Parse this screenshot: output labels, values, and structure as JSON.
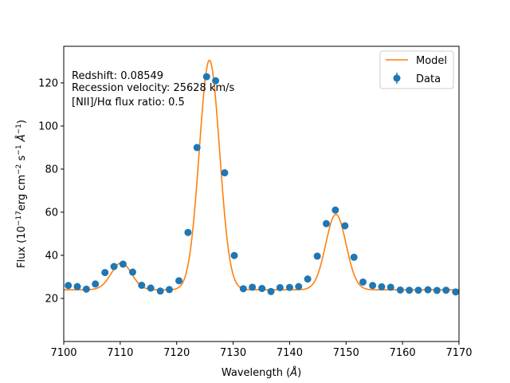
{
  "chart_data": {
    "type": "scatter",
    "xlabel_main": "Wavelength (",
    "xlabel_unit": "Å",
    "xlabel_end": ")",
    "ylabel_main": "Flux (10",
    "ylabel_exp1": "−17",
    "ylabel_mid1": "erg cm",
    "ylabel_exp2": "−2",
    "ylabel_mid2": " s",
    "ylabel_exp3": "−1",
    "ylabel_mid3": " Å",
    "ylabel_exp4": "−1",
    "ylabel_end": ")",
    "xlim": [
      7100,
      7170
    ],
    "ylim": [
      0,
      137
    ],
    "xticks": [
      7100,
      7110,
      7120,
      7130,
      7140,
      7150,
      7160,
      7170
    ],
    "yticks": [
      20,
      40,
      60,
      80,
      100,
      120
    ],
    "grid": false,
    "legend_position": "top-right",
    "annotations": [
      "Redshift: 0.08549",
      "Recession velocity: 25628 km/s",
      "[NII]/Hα flux ratio: 0.5"
    ],
    "series": [
      {
        "name": "Model",
        "kind": "line",
        "color": "#ff7f0e",
        "continuum": 24,
        "components": [
          {
            "center": 7110.2,
            "amplitude": 12.5,
            "sigma": 1.8
          },
          {
            "center": 7125.8,
            "amplitude": 106.5,
            "sigma": 1.8
          },
          {
            "center": 7148.2,
            "amplitude": 35.0,
            "sigma": 1.8
          }
        ]
      },
      {
        "name": "Data",
        "kind": "scatter",
        "color": "#1f77b4",
        "x": [
          7100.8,
          7102.4,
          7104.0,
          7105.6,
          7107.3,
          7108.9,
          7110.5,
          7112.2,
          7113.8,
          7115.4,
          7117.1,
          7118.7,
          7120.4,
          7122.0,
          7123.6,
          7125.3,
          7126.9,
          7128.5,
          7130.2,
          7131.8,
          7133.4,
          7135.1,
          7136.7,
          7138.3,
          7140.0,
          7141.6,
          7143.2,
          7144.9,
          7146.5,
          7148.1,
          7149.8,
          7151.4,
          7153.0,
          7154.7,
          7156.3,
          7157.9,
          7159.6,
          7161.2,
          7162.8,
          7164.5,
          7166.1,
          7167.7,
          7169.4
        ],
        "y": [
          26.0,
          25.5,
          24.3,
          26.7,
          32.0,
          34.8,
          35.9,
          32.2,
          26.1,
          24.8,
          23.4,
          24.1,
          28.2,
          50.6,
          90.0,
          122.9,
          121.0,
          78.3,
          39.9,
          24.5,
          25.2,
          24.6,
          23.2,
          25.0,
          25.1,
          25.5,
          29.0,
          39.6,
          54.7,
          61.0,
          53.7,
          39.1,
          27.6,
          26.0,
          25.4,
          25.2,
          23.9,
          23.8,
          23.8,
          24.0,
          23.7,
          23.8,
          23.0
        ]
      }
    ]
  }
}
